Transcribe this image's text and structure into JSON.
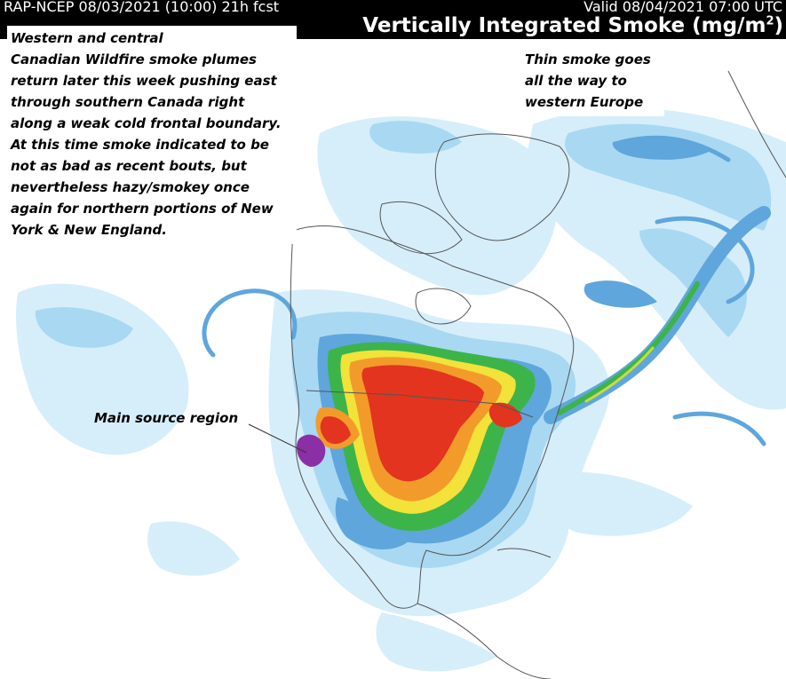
{
  "header": {
    "model_run": "RAP-NCEP 08/03/2021 (10:00) 21h fcst",
    "valid_time": "Valid 08/04/2021 07:00 UTC",
    "title_prefix": "Vertically Integrated Smoke (mg/m",
    "title_superscript": "2",
    "title_suffix": ")"
  },
  "annotations": {
    "main_note_lines": [
      "Western and central",
      "Canadian Wildfire smoke plumes",
      "return later this week pushing east",
      "through southern Canada right",
      "along a weak cold frontal boundary.",
      "At this time smoke indicated to be",
      "not as bad as recent bouts, but",
      "nevertheless hazy/smokey once",
      "again for northern portions of New",
      "York & New England."
    ],
    "europe_note_lines": [
      "Thin smoke goes",
      "all the way to",
      "western Europe"
    ],
    "source_label": "Main source region"
  },
  "map": {
    "background_color": "#ffffff",
    "outline_color": "#555555",
    "smoke_colors": {
      "very_light": "#d6eefa",
      "light": "#a9d8f2",
      "medium": "#5fa6dc",
      "dark_blue": "#2f78c2",
      "green": "#3cb44a",
      "yellow_green": "#c8dc3c",
      "yellow": "#f2e23a",
      "orange": "#f39b2a",
      "red": "#e2341f",
      "purple": "#8b2fa6"
    }
  }
}
